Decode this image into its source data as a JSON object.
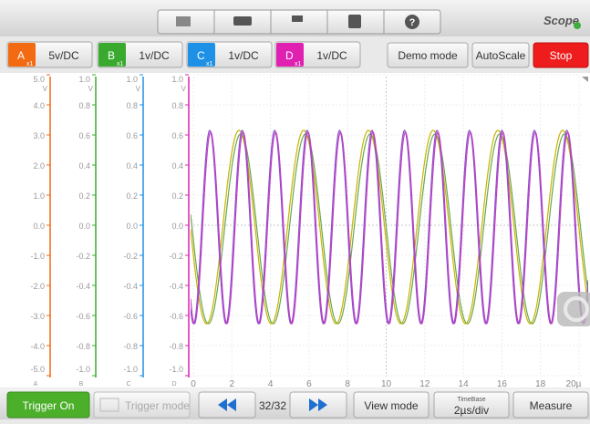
{
  "toolbar": {
    "app_title": "Scope"
  },
  "channels": [
    {
      "name": "A",
      "probe": "x1",
      "setting": "5v/DC"
    },
    {
      "name": "B",
      "probe": "x1",
      "setting": "1v/DC"
    },
    {
      "name": "C",
      "probe": "x1",
      "setting": "1v/DC"
    },
    {
      "name": "D",
      "probe": "x1",
      "setting": "1v/DC"
    }
  ],
  "buttons": {
    "demo_mode": "Demo mode",
    "autoscale": "AutoScale",
    "stop": "Stop"
  },
  "axes": [
    {
      "unit": "V",
      "labels": [
        "5.0",
        "4.0",
        "3.0",
        "2.0",
        "1.0",
        "0.0",
        "-1.0",
        "-2.0",
        "-3.0",
        "-4.0",
        "-5.0"
      ]
    },
    {
      "unit": "V",
      "labels": [
        "1.0",
        "0.8",
        "0.6",
        "0.4",
        "0.2",
        "0.0",
        "-0.2",
        "-0.4",
        "-0.6",
        "-0.8",
        "-1.0"
      ]
    },
    {
      "unit": "V",
      "labels": [
        "1.0",
        "0.8",
        "0.6",
        "0.4",
        "0.2",
        "0.0",
        "-0.2",
        "-0.4",
        "-0.6",
        "-0.8",
        "-1.0"
      ]
    },
    {
      "unit": "V",
      "labels": [
        "1.0",
        "0.8",
        "0.6",
        "0.4",
        "0.2",
        "0.0",
        "-0.2",
        "-0.4",
        "-0.6",
        "-0.8",
        "-1.0"
      ]
    }
  ],
  "time_axis": {
    "labels": [
      "0",
      "2",
      "4",
      "6",
      "8",
      "10",
      "12",
      "14",
      "16",
      "18",
      "20µ"
    ]
  },
  "footer": {
    "trigger_on": "Trigger On",
    "trigger_mode": "Trigger mode",
    "page": "32/32",
    "view_mode": "View mode",
    "timebase_label": "TimeBase",
    "timebase": "2µs/div",
    "measure": "Measure"
  }
}
